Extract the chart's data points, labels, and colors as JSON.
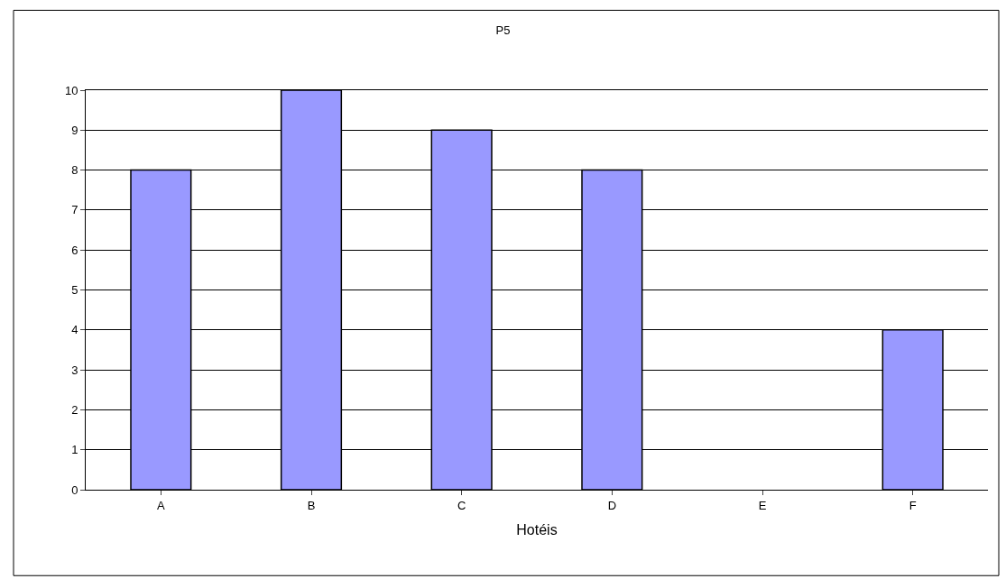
{
  "chart_data": {
    "type": "bar",
    "title": "P5",
    "xlabel": "Hotéis",
    "categories": [
      "A",
      "B",
      "C",
      "D",
      "E",
      "F"
    ],
    "values": [
      8,
      10,
      9,
      8,
      null,
      4
    ],
    "color": "#9999ff",
    "ylim": [
      0,
      10
    ],
    "yticks": [
      0,
      1,
      2,
      3,
      4,
      5,
      6,
      7,
      8,
      9,
      10
    ],
    "grid": "y",
    "legend": false
  }
}
